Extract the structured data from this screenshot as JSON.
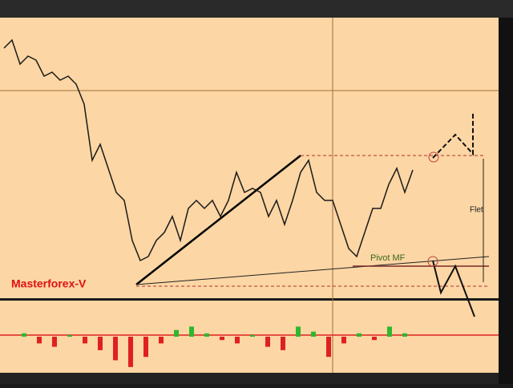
{
  "chart_data": [
    {
      "type": "line",
      "annotations": [
        "Masterforex-V",
        "Pivot MF",
        "Flet"
      ],
      "color": "#1a1a1a",
      "ylim": [
        1.27,
        1.34
      ],
      "values": [
        1.3324,
        1.3344,
        1.3284,
        1.3304,
        1.3294,
        1.3254,
        1.3264,
        1.3244,
        1.3254,
        1.3234,
        1.3184,
        1.3044,
        1.3084,
        1.3024,
        1.2964,
        1.2944,
        1.2844,
        1.2794,
        1.2804,
        1.2844,
        1.2864,
        1.2904,
        1.2844,
        1.2924,
        1.2944,
        1.2924,
        1.2944,
        1.2904,
        1.2944,
        1.3014,
        1.2964,
        1.2974,
        1.2964,
        1.2904,
        1.2944,
        1.2884,
        1.2944,
        1.3014,
        1.3044,
        1.2964,
        1.2944,
        1.2944,
        1.2884,
        1.2824,
        1.2804,
        1.2864,
        1.2924,
        1.2924,
        1.2984,
        1.3024,
        1.2964,
        1.302
      ]
    },
    {
      "type": "bar",
      "ylim": [
        -1,
        1
      ],
      "colors": {
        "up": "#2db82d",
        "down": "#e02020"
      },
      "values": [
        0.1,
        -0.2,
        -0.3,
        0.05,
        -0.2,
        -0.4,
        -0.7,
        -0.9,
        -0.6,
        -0.2,
        0.2,
        0.3,
        0.1,
        -0.1,
        -0.2,
        0.05,
        -0.3,
        -0.4,
        0.3,
        0.15,
        -0.6,
        -0.2,
        0.1,
        -0.1,
        0.3,
        0.1
      ]
    }
  ]
}
